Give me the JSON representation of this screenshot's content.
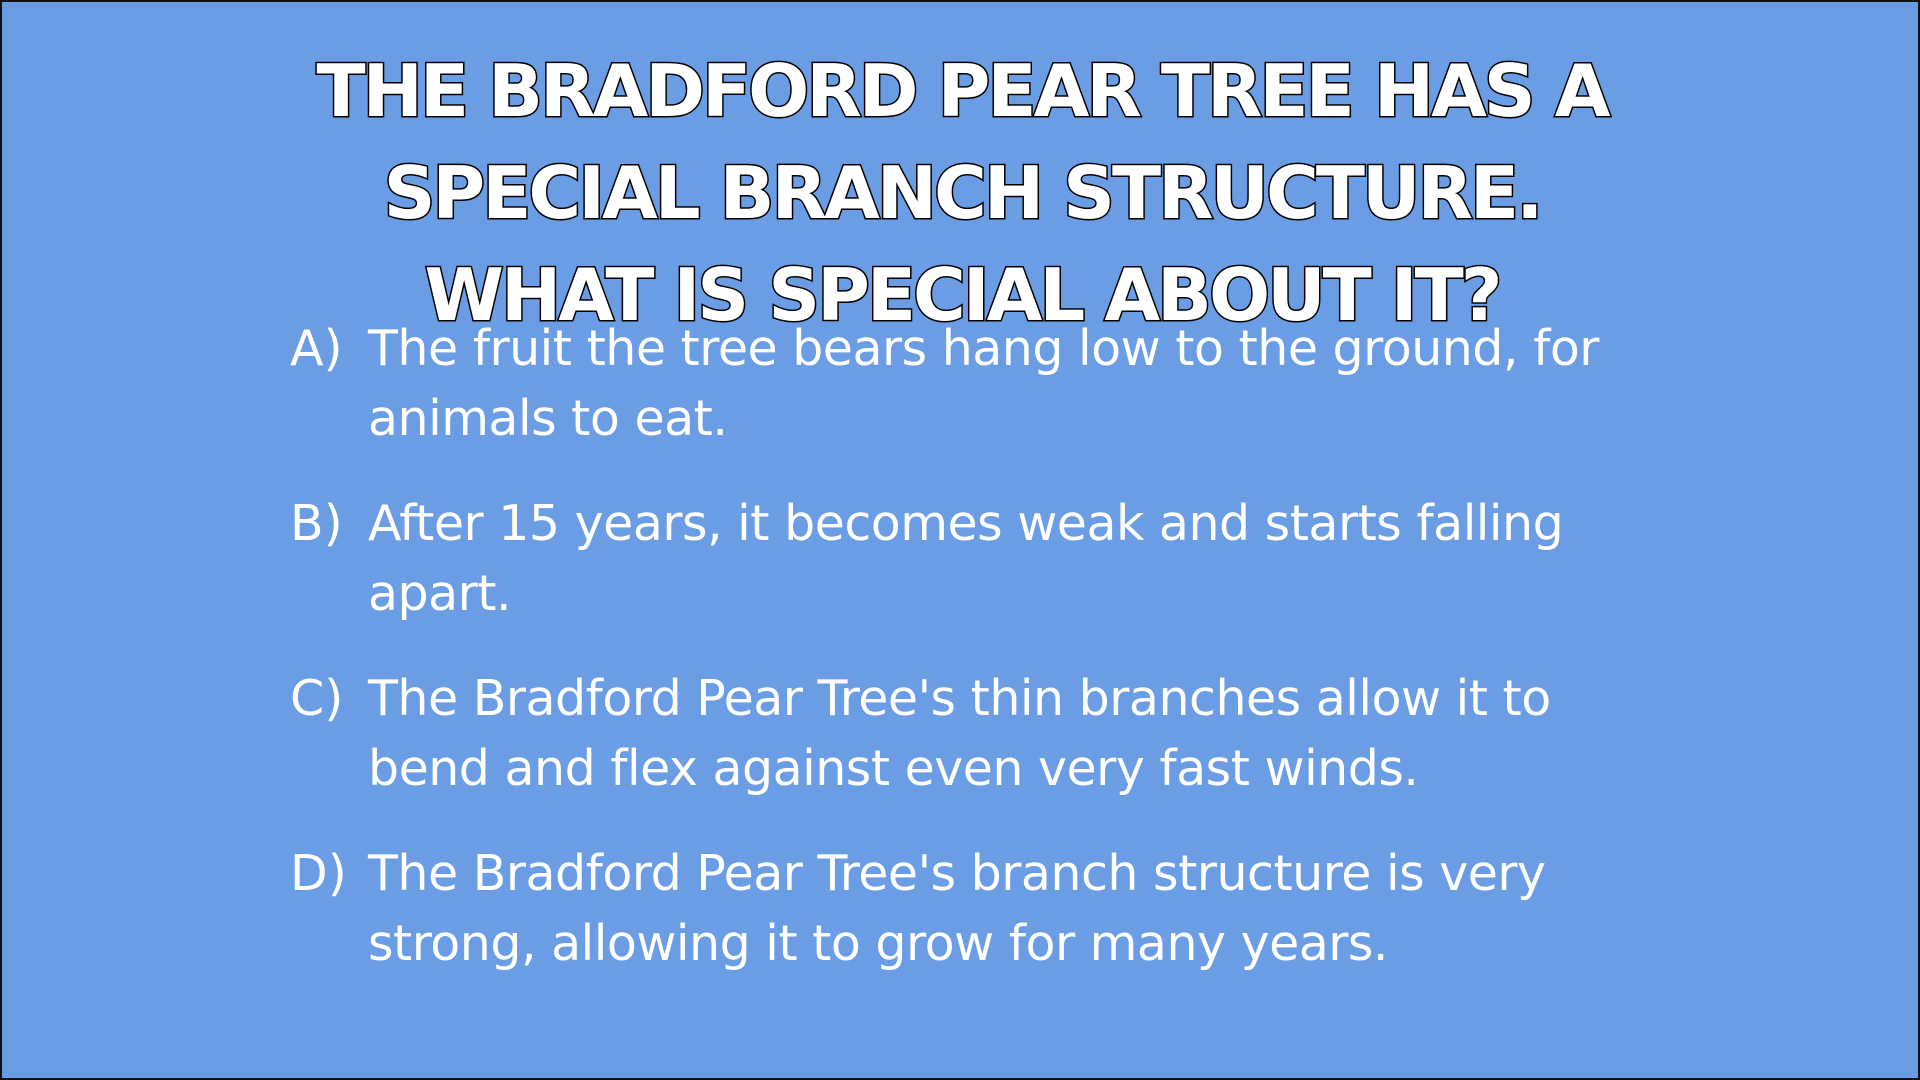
{
  "question": {
    "title_lines": [
      "THE BRADFORD PEAR TREE HAS A",
      "SPECIAL BRANCH STRUCTURE.",
      "WHAT IS SPECIAL ABOUT IT?"
    ]
  },
  "options": [
    {
      "letter": "A)",
      "line1": "The fruit the tree bears hang low to the ground, for",
      "line2": "animals to eat."
    },
    {
      "letter": "B)",
      "line1": "After 15 years, it becomes weak and starts falling",
      "line2": "apart."
    },
    {
      "letter": "C)",
      "line1": "The Bradford Pear Tree's thin branches allow it to",
      "line2": "bend and flex against even very fast winds."
    },
    {
      "letter": "D)",
      "line1": "The Bradford Pear Tree's branch structure is very",
      "line2": "strong, allowing it to grow for many years."
    }
  ],
  "colors": {
    "background": "#6a9de3",
    "text": "#ffffff",
    "title_outline": "#000000"
  }
}
